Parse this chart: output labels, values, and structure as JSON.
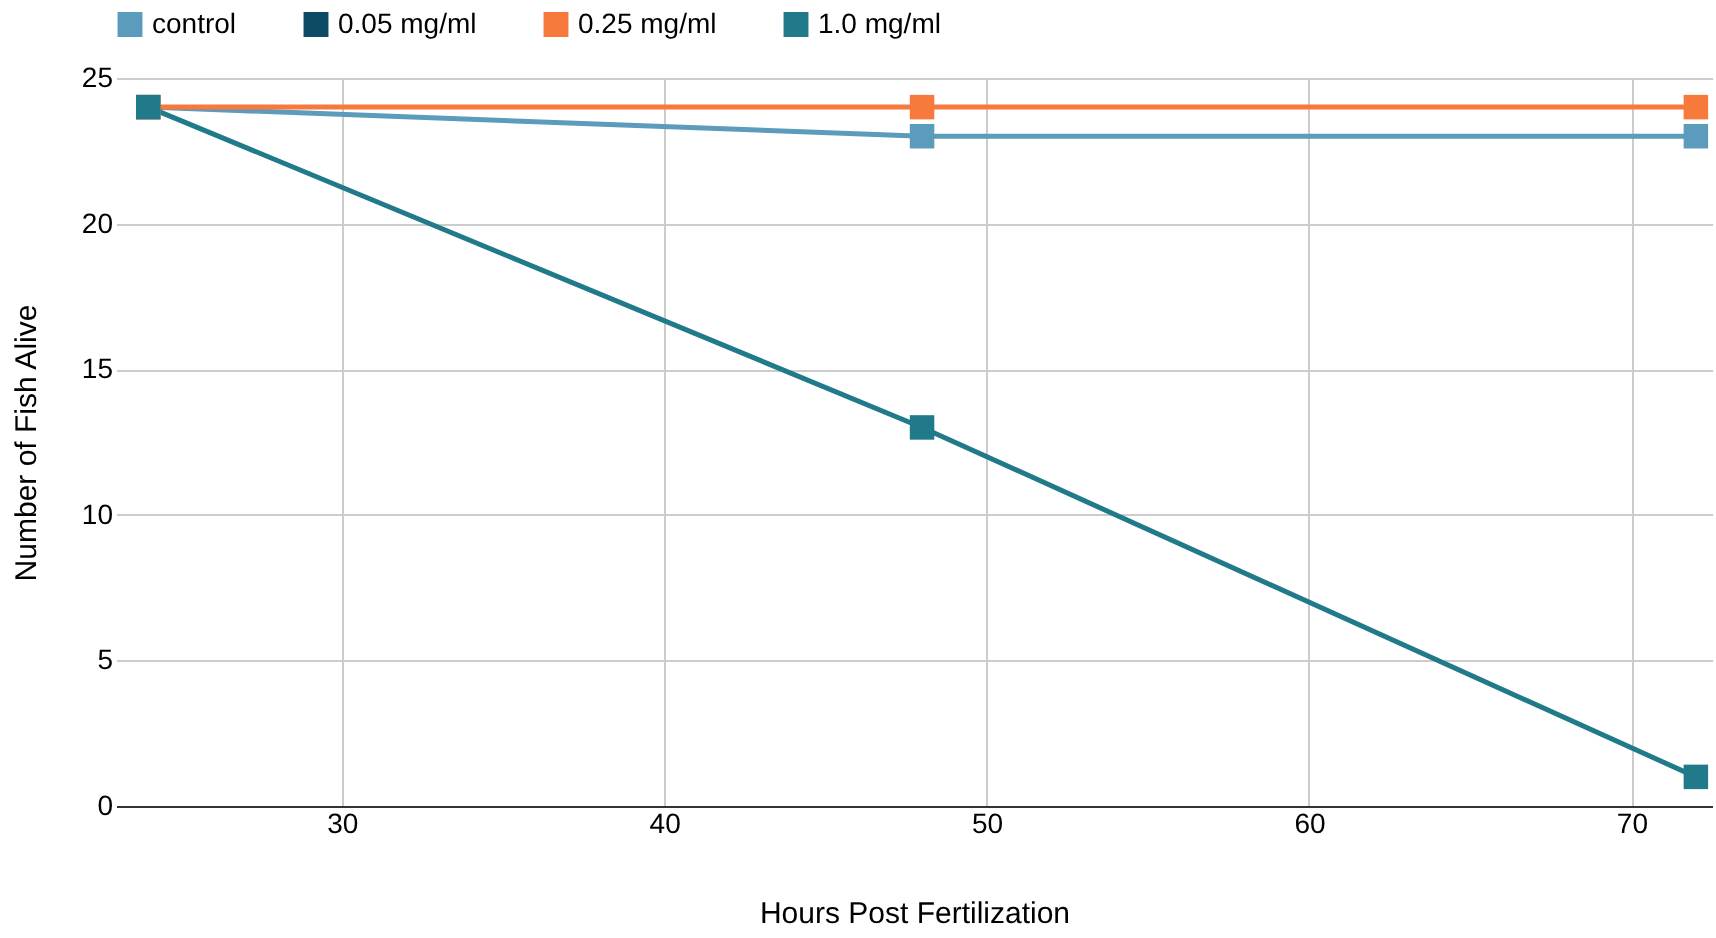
{
  "chart_data": {
    "type": "line",
    "xlabel": "Hours Post Fertilization",
    "ylabel": "Number of Fish Alive",
    "x": [
      24,
      48,
      72
    ],
    "series": [
      {
        "name": "control",
        "color": "#5b9bbb",
        "values": [
          24,
          23,
          23
        ]
      },
      {
        "name": "0.05 mg/ml",
        "color": "#0d4a66",
        "values": [
          null,
          null,
          null
        ]
      },
      {
        "name": "0.25 mg/ml",
        "color": "#f7793b",
        "values": [
          24,
          24,
          24
        ]
      },
      {
        "name": "1.0 mg/ml",
        "color": "#217a8a",
        "values": [
          24,
          13,
          1
        ]
      }
    ],
    "xlim": [
      23,
      72.5
    ],
    "xticks": [
      30,
      40,
      50,
      60,
      70
    ],
    "ylim": [
      0,
      25
    ],
    "yticks": [
      0,
      5,
      10,
      15,
      20,
      25
    ],
    "grid": true,
    "legend": "top",
    "marker": "square",
    "line_style": "solid"
  }
}
